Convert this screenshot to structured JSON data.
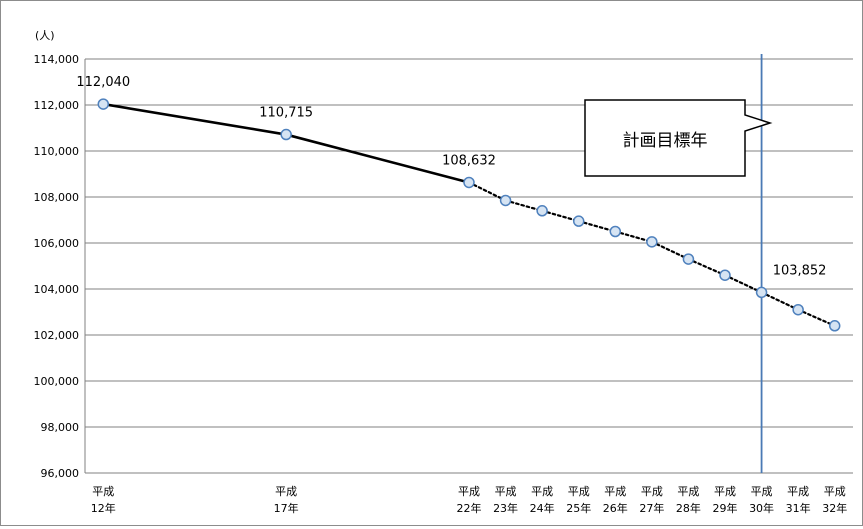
{
  "chart_data": {
    "type": "line",
    "title": "",
    "ylabel": "(人)",
    "xlabel": "",
    "ylim": [
      96000,
      114000
    ],
    "y_ticks": [
      96000,
      98000,
      100000,
      102000,
      104000,
      106000,
      108000,
      110000,
      112000,
      114000
    ],
    "y_tick_labels": [
      "96,000",
      "98,000",
      "100,000",
      "102,000",
      "104,000",
      "106,000",
      "108,000",
      "110,000",
      "112,000",
      "114,000"
    ],
    "grid": true,
    "legend": "none",
    "categories": [
      [
        "平成",
        "12年"
      ],
      [
        "平成",
        "17年"
      ],
      [
        "平成",
        "22年"
      ],
      [
        "平成",
        "23年"
      ],
      [
        "平成",
        "24年"
      ],
      [
        "平成",
        "25年"
      ],
      [
        "平成",
        "26年"
      ],
      [
        "平成",
        "27年"
      ],
      [
        "平成",
        "28年"
      ],
      [
        "平成",
        "29年"
      ],
      [
        "平成",
        "30年"
      ],
      [
        "平成",
        "31年"
      ],
      [
        "平成",
        "32年"
      ]
    ],
    "x": [
      12,
      17,
      22,
      23,
      24,
      25,
      26,
      27,
      28,
      29,
      30,
      31,
      32
    ],
    "series": [
      {
        "values": [
          112040,
          110715,
          108632,
          107850,
          107400,
          106950,
          106500,
          106050,
          105300,
          104600,
          103852,
          103100,
          102400
        ],
        "actual_through_x": 22,
        "line_style_actual": "solid",
        "line_style_projection": "dotted"
      }
    ],
    "data_labels": [
      {
        "x": 12,
        "text": "112,040"
      },
      {
        "x": 17,
        "text": "110,715"
      },
      {
        "x": 22,
        "text": "108,632"
      },
      {
        "x": 30,
        "text": "103,852"
      }
    ],
    "target_year_line": {
      "x": 30,
      "color": "#4a7ab5"
    },
    "callout": {
      "text": "計画目標年"
    },
    "colors": {
      "line": "#000000",
      "marker_fill": "#d6e4f3",
      "marker_stroke": "#4f81bd",
      "grid": "#808080"
    }
  }
}
